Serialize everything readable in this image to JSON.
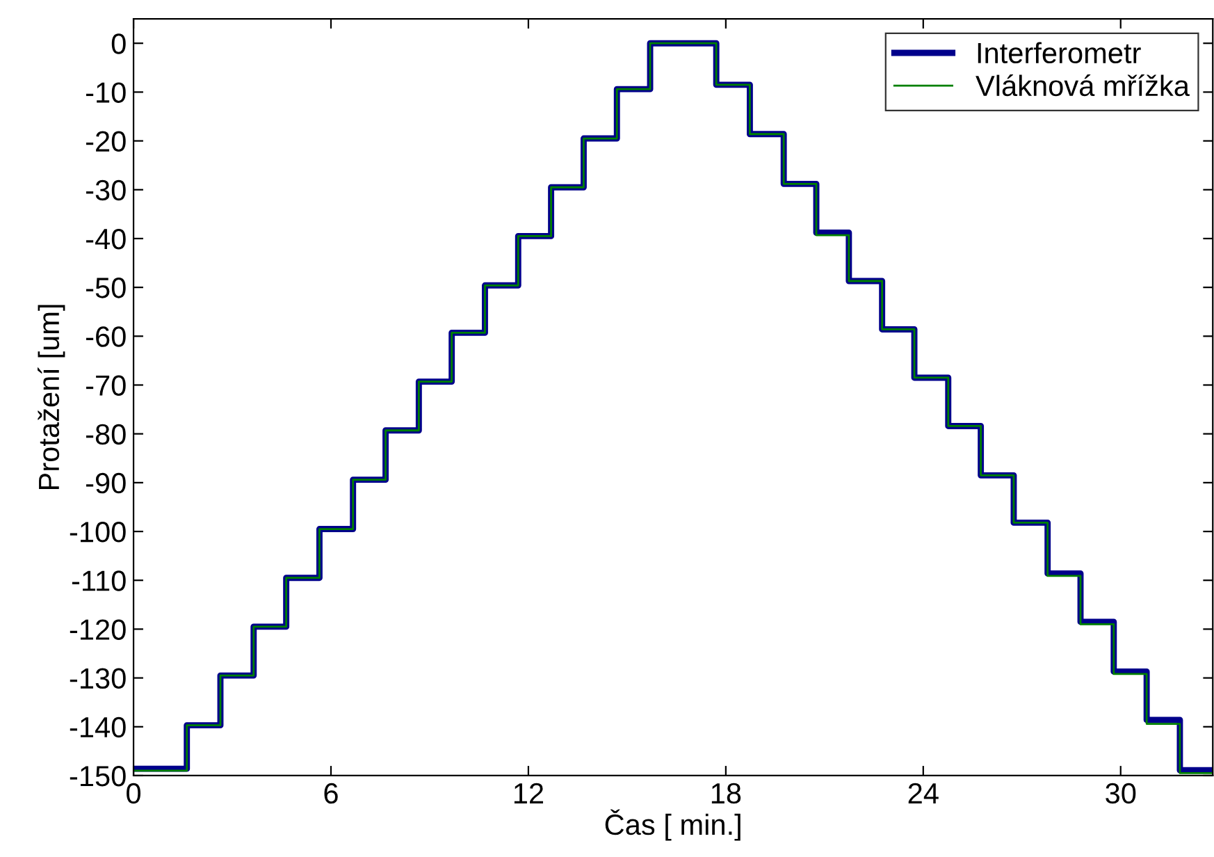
{
  "chart_data": {
    "type": "step",
    "xlabel": "Čas [ min.]",
    "ylabel": "Protažení [um]",
    "x": [
      0,
      1.62,
      2.64,
      3.65,
      4.64,
      5.65,
      6.67,
      7.66,
      8.67,
      9.67,
      10.68,
      11.69,
      12.69,
      13.68,
      14.69,
      15.7,
      17.71,
      18.73,
      19.76,
      20.75,
      21.74,
      22.75,
      23.73,
      24.76,
      25.75,
      26.75,
      27.78,
      28.78,
      29.79,
      30.79,
      31.8,
      32.8
    ],
    "series": [
      {
        "name": "Interferometr",
        "color": "#00008b",
        "values": [
          -148.6,
          -139.7,
          -129.5,
          -119.5,
          -109.5,
          -99.5,
          -89.4,
          -79.3,
          -69.3,
          -59.3,
          -49.6,
          -39.5,
          -29.5,
          -19.5,
          -9.4,
          0,
          -8.5,
          -18.6,
          -28.8,
          -38.8,
          -48.7,
          -58.6,
          -68.5,
          -78.4,
          -88.5,
          -98.2,
          -108.6,
          -118.5,
          -128.7,
          -138.6,
          -148.9,
          -148.9
        ]
      },
      {
        "name": "Vláknová mřížka",
        "color": "#008000",
        "values": [
          -149,
          -139.7,
          -129.5,
          -119.5,
          -109.5,
          -99.5,
          -89.4,
          -79.3,
          -69.3,
          -59.3,
          -49.6,
          -39.5,
          -29.5,
          -19.5,
          -9.4,
          0,
          -8.5,
          -18.6,
          -28.8,
          -39.3,
          -48.7,
          -58.6,
          -68.5,
          -78.4,
          -88.5,
          -98.2,
          -109.1,
          -119,
          -129.2,
          -139.4,
          -149.5,
          -149.5
        ]
      }
    ],
    "xlim": [
      0,
      32.8
    ],
    "ylim": [
      -150,
      5
    ],
    "xticks": [
      0,
      6,
      12,
      18,
      24,
      30
    ],
    "yticks": [
      0,
      -10,
      -20,
      -30,
      -40,
      -50,
      -60,
      -70,
      -80,
      -90,
      -100,
      -110,
      -120,
      -130,
      -140,
      -150
    ],
    "grid": false,
    "legend": "top right",
    "line_style": "solid",
    "marker": "none"
  }
}
